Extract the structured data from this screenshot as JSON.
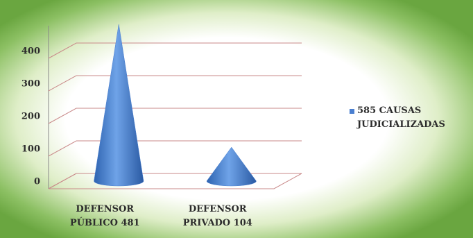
{
  "chart_data": {
    "type": "cone",
    "categories": [
      "DEFENSOR PÚBLICO 481",
      "DEFENSOR PRIVADO 104"
    ],
    "series": [
      {
        "name": "585 CAUSAS JUDICIALIZADAS",
        "color": "#4a7fd0",
        "values": [
          481,
          104
        ]
      }
    ],
    "ylim": [
      0,
      500
    ],
    "yticks": [
      0,
      100,
      200,
      300,
      400
    ],
    "grid": true,
    "legend": "right"
  }
}
